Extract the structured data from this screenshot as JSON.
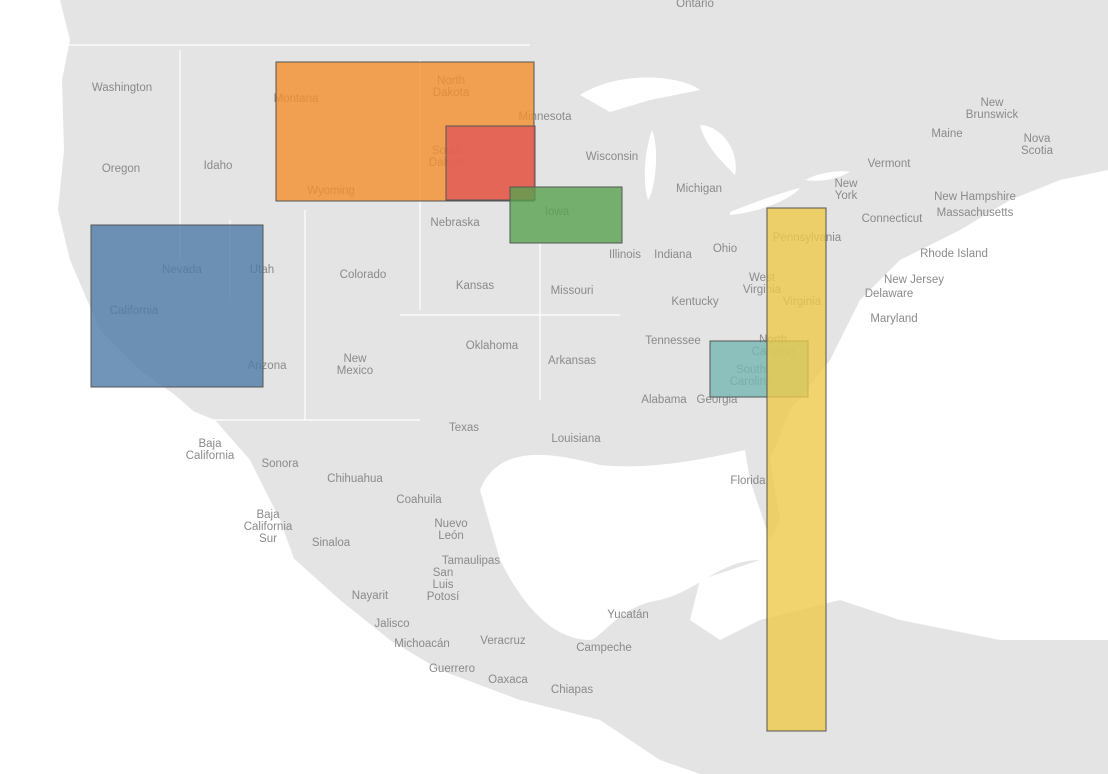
{
  "labels": [
    "Ontario",
    "Washington",
    "Oregon",
    "Idaho",
    "Montana",
    [
      "North",
      "Dakota"
    ],
    "Minnesota",
    [
      "South",
      "Dakota"
    ],
    "Wisconsin",
    "Michigan",
    "Wyoming",
    "Nebraska",
    "Iowa",
    "Illinois",
    "Indiana",
    "Ohio",
    "Pennsylvania",
    [
      "New",
      "York"
    ],
    "Vermont",
    "Maine",
    [
      "New",
      "Brunswick"
    ],
    [
      "Nova",
      "Scotia"
    ],
    "New Hampshire",
    "Massachusetts",
    "Connecticut",
    "Rhode Island",
    "New Jersey",
    "Delaware",
    "Maryland",
    [
      "West",
      "Virginia"
    ],
    "Virginia",
    "Kentucky",
    "Nevada",
    "Utah",
    "Colorado",
    "Kansas",
    "Missouri",
    "California",
    "Arizona",
    [
      "New",
      "Mexico"
    ],
    "Oklahoma",
    "Arkansas",
    "Tennessee",
    [
      "North",
      "Carolina"
    ],
    [
      "South",
      "Carolina"
    ],
    "Alabama",
    "Georgia",
    "Texas",
    "Louisiana",
    "Florida",
    [
      "Baja",
      "California"
    ],
    "Sonora",
    "Chihuahua",
    "Coahuila",
    [
      "Nuevo",
      "León"
    ],
    [
      "Baja",
      "California",
      "Sur"
    ],
    "Sinaloa",
    "Tamaulipas",
    [
      "San",
      "Luis",
      "Potosí"
    ],
    "Nayarit",
    "Jalisco",
    "Michoacán",
    "Veracruz",
    "Yucatán",
    "Campeche",
    "Guerrero",
    "Oaxaca",
    "Chiapas"
  ]
}
